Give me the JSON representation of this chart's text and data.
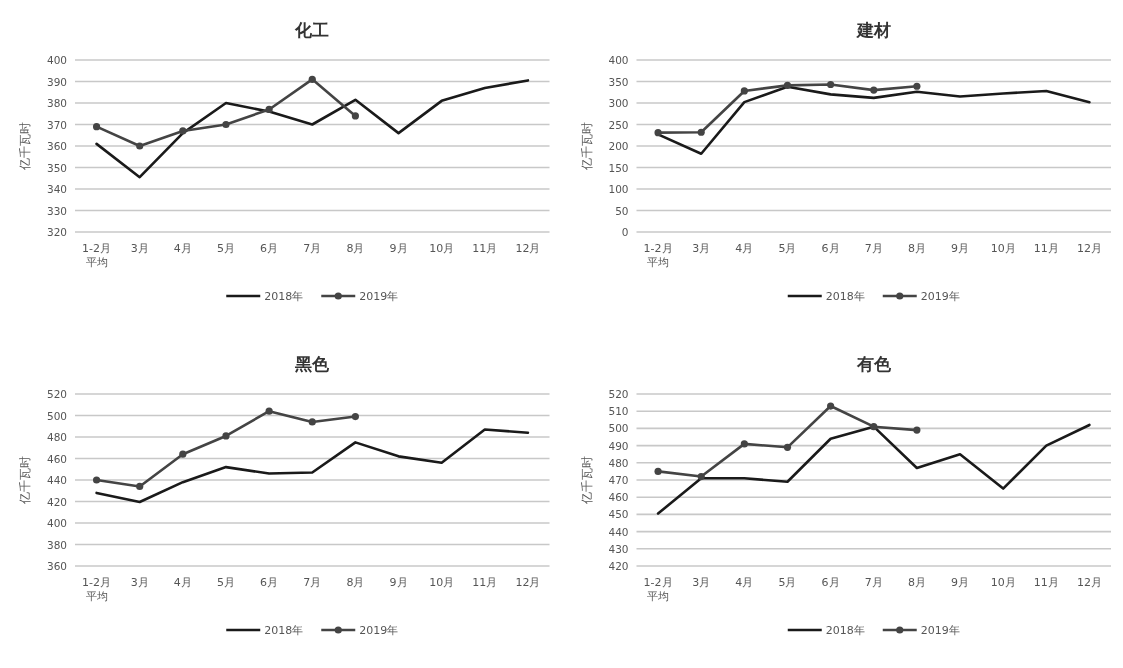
{
  "chart_data": [
    {
      "type": "line",
      "title": "化工",
      "ylabel": "亿千瓦时",
      "categories": [
        "1-2月平均",
        "3月",
        "4月",
        "5月",
        "6月",
        "7月",
        "8月",
        "9月",
        "10月",
        "11月",
        "12月"
      ],
      "series": [
        {
          "name": "2018年",
          "color": "#1a1a1a",
          "marker": "none",
          "values": [
            361,
            345.5,
            366,
            380,
            376,
            370,
            381.5,
            366,
            381,
            387,
            390.5
          ]
        },
        {
          "name": "2019年",
          "color": "#444444",
          "marker": "circle",
          "values": [
            369,
            360,
            367,
            370,
            377,
            391,
            374,
            null,
            null,
            null,
            null
          ]
        }
      ],
      "ylim": [
        320,
        400
      ],
      "yticks": [
        320,
        330,
        340,
        350,
        360,
        370,
        380,
        390,
        400
      ],
      "grid": "y",
      "legend": "bottom"
    },
    {
      "type": "line",
      "title": "建材",
      "ylabel": "亿千瓦时",
      "categories": [
        "1-2月平均",
        "3月",
        "4月",
        "5月",
        "6月",
        "7月",
        "8月",
        "9月",
        "10月",
        "11月",
        "12月"
      ],
      "series": [
        {
          "name": "2018年",
          "color": "#1a1a1a",
          "marker": "none",
          "values": [
            227,
            182,
            302,
            338,
            320,
            312,
            326,
            315,
            322,
            328,
            302
          ]
        },
        {
          "name": "2019年",
          "color": "#444444",
          "marker": "circle",
          "values": [
            231,
            232,
            328,
            341,
            343,
            330,
            339,
            null,
            null,
            null,
            null
          ]
        }
      ],
      "ylim": [
        0,
        400
      ],
      "yticks": [
        0,
        50,
        100,
        150,
        200,
        250,
        300,
        350,
        400
      ],
      "grid": "y",
      "legend": "bottom"
    },
    {
      "type": "line",
      "title": "黑色",
      "ylabel": "亿千瓦时",
      "categories": [
        "1-2月平均",
        "3月",
        "4月",
        "5月",
        "6月",
        "7月",
        "8月",
        "9月",
        "10月",
        "11月",
        "12月"
      ],
      "series": [
        {
          "name": "2018年",
          "color": "#1a1a1a",
          "marker": "none",
          "values": [
            428,
            419.5,
            438,
            452,
            446,
            447,
            475,
            462,
            456,
            487,
            484
          ]
        },
        {
          "name": "2019年",
          "color": "#444444",
          "marker": "circle",
          "values": [
            440,
            434,
            464,
            481,
            504,
            494,
            499,
            null,
            null,
            null,
            null
          ]
        }
      ],
      "ylim": [
        360,
        520
      ],
      "yticks": [
        360,
        380,
        400,
        420,
        440,
        460,
        480,
        500,
        520
      ],
      "grid": "y",
      "legend": "bottom"
    },
    {
      "type": "line",
      "title": "有色",
      "ylabel": "亿千瓦时",
      "categories": [
        "1-2月平均",
        "3月",
        "4月",
        "5月",
        "6月",
        "7月",
        "8月",
        "9月",
        "10月",
        "11月",
        "12月"
      ],
      "series": [
        {
          "name": "2018年",
          "color": "#1a1a1a",
          "marker": "none",
          "values": [
            450.5,
            471,
            471,
            469,
            494,
            501,
            477,
            485,
            465,
            490,
            502
          ]
        },
        {
          "name": "2019年",
          "color": "#444444",
          "marker": "circle",
          "values": [
            475,
            472,
            491,
            489,
            513,
            501,
            499,
            null,
            null,
            null,
            null
          ]
        }
      ],
      "ylim": [
        420,
        520
      ],
      "yticks": [
        420,
        430,
        440,
        450,
        460,
        470,
        480,
        490,
        500,
        510,
        520
      ],
      "grid": "y",
      "legend": "bottom"
    }
  ]
}
